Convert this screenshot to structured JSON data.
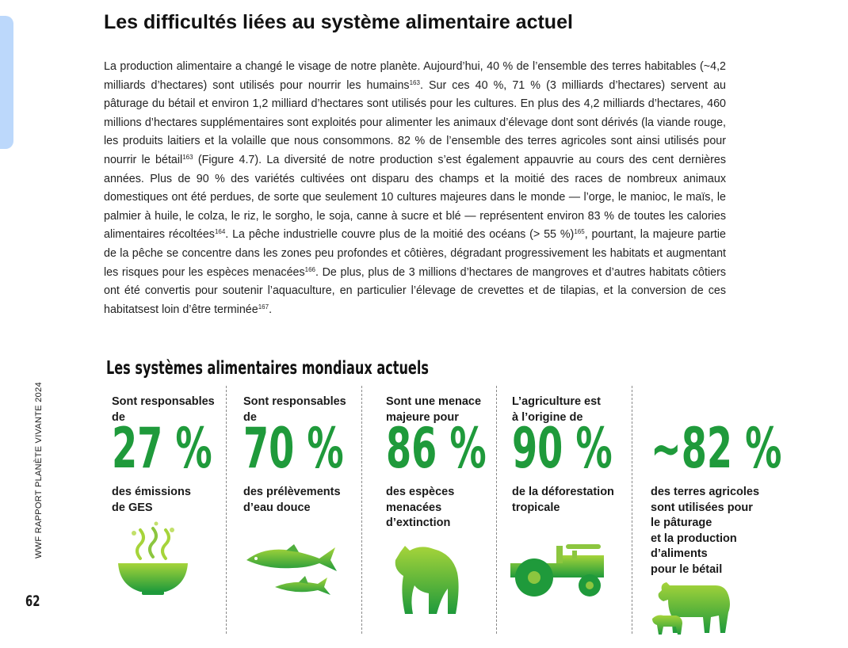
{
  "sidebar": {
    "running_title": "WWF RAPPORT PLANÈTE VIVANTE 2024",
    "page_number": "62"
  },
  "article": {
    "title": "Les difficultés liées au système alimentaire actuel",
    "segments": [
      "La production alimentaire a changé le visage de notre planète. Aujourd’hui, 40 % de l’ensemble des terres habitables (~4,2 milliards d’hectares) sont utilisés pour nourrir les humains",
      "163",
      ". Sur ces 40 %, 71 % (3 milliards d’hectares) servent au pâturage du bétail et environ 1,2 milliard d’hectares sont utilisés pour les cultures. En plus des 4,2 milliards d’hectares, 460 millions d’hectares supplémentaires sont exploités pour alimenter les animaux d’élevage dont sont dérivés (la viande rouge, les produits laitiers et la volaille que nous consommons. 82 % de l’ensemble des terres agricoles sont ainsi utilisés pour nourrir le bétail",
      "163",
      " (Figure 4.7). La diversité de notre production s’est également appauvrie au cours des cent dernières années. Plus de 90 % des variétés cultivées ont disparu des champs et la moitié des races de nombreux animaux domestiques ont été perdues, de sorte que seulement 10 cultures majeures dans le monde — l’orge, le manioc, le maïs, le palmier à huile, le colza, le riz, le sorgho, le soja, canne à sucre et blé — représentent environ 83 % de toutes les calories alimentaires récoltées",
      "164",
      ". La pêche industrielle couvre plus de la moitié des océans (> 55 %)",
      "165",
      ", pourtant, la majeure partie de la pêche se concentre dans les zones peu profondes et côtières, dégradant progressivement les habitats et augmentant les risques pour les espèces menacées",
      "166",
      ". De plus, plus de 3 millions d’hectares de mangroves et d’autres habitats côtiers ont été convertis pour soutenir l’aquaculture, en particulier l’élevage de crevettes et de tilapias, et la conversion de ces habitatsest loin d’être terminée",
      "167",
      "."
    ]
  },
  "infographic": {
    "heading": "Les systèmes alimentaires mondiaux actuels",
    "accent_color": "#1f9a3b",
    "stats": [
      {
        "pre": "Sont responsables\nde",
        "value": "27 %",
        "post": "des émissions\nde GES",
        "icon": "steaming-bowl-icon"
      },
      {
        "pre": "Sont responsables\nde",
        "value": "70 %",
        "post": "des prélèvements\nd’eau douce",
        "icon": "fish-icon"
      },
      {
        "pre": "Sont une menace\nmajeure pour",
        "value": "86 %",
        "post": "des espèces\nmenacées\nd’extinction",
        "icon": "big-cat-icon"
      },
      {
        "pre": "L’agriculture est\nà l’origine de",
        "value": "90 %",
        "post": "de la déforestation\ntropicale",
        "icon": "tractor-icon"
      },
      {
        "pre": "",
        "value": "~82 %",
        "post": "des terres agricoles\nsont utilisées pour\nle pâturage\net la production\nd’aliments\npour le bétail",
        "icon": "cow-icon"
      }
    ]
  }
}
